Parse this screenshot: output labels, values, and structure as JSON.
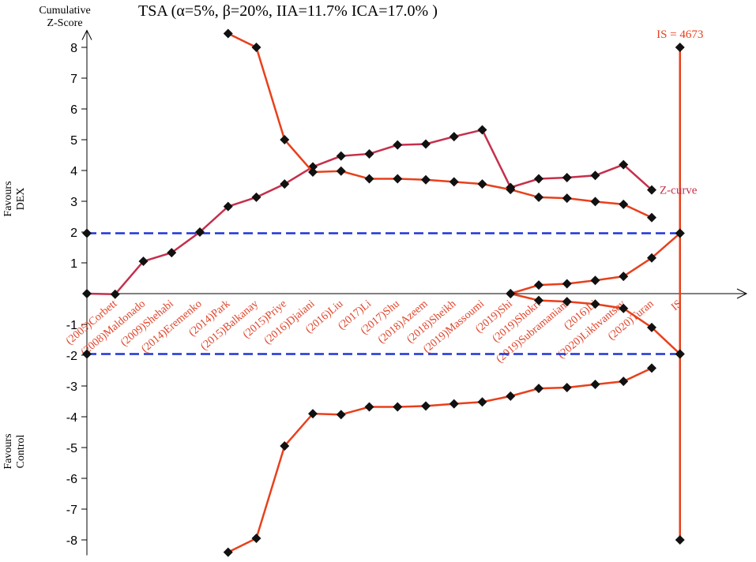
{
  "chart_data": {
    "type": "line",
    "title": "TSA  (α=5%,  β=20%, IIA=11.7%  ICA=17.0%  )",
    "y_label": [
      "Cumulative",
      "Z-Score"
    ],
    "side_labels": [
      [
        "Favours",
        "DEX"
      ],
      [
        "Favours",
        "Control"
      ]
    ],
    "categories": [
      null,
      "(2005)Corbett",
      "(2008)Maldonado",
      "(2009)Shehabi",
      "(2014)Eremenko",
      "(2014)Park",
      "(2015)Balkanay",
      "(2015)Priye",
      "(2016)Djaiani",
      "(2016)Liu",
      "(2017)Li",
      "(2017)Shu",
      "(2018)Azeem",
      "(2018)Sheikh",
      "(2019)Massoumi",
      "(2019)Shi",
      "(2019)Shokri",
      "(2019)Subramaniam",
      "(2016)Li",
      "(2020)Likhvantsev",
      "(2020)Turan",
      "IS"
    ],
    "category_color": "#e0442a",
    "series": [
      {
        "name": "Z-curve",
        "color": "#c4304c",
        "values": [
          0,
          -0.02,
          1.05,
          1.33,
          2.0,
          2.83,
          3.13,
          3.56,
          4.12,
          4.47,
          4.54,
          4.83,
          4.86,
          5.1,
          5.32,
          3.45,
          3.73,
          3.77,
          3.84,
          4.19,
          3.37,
          null
        ]
      },
      {
        "color": "#e8401c",
        "values": [
          null,
          null,
          null,
          null,
          null,
          8.45,
          8.0,
          5.0,
          3.95,
          3.98,
          3.73,
          3.73,
          3.7,
          3.63,
          3.56,
          3.38,
          3.13,
          3.1,
          2.99,
          2.9,
          2.47,
          null
        ]
      },
      {
        "color": "#e8401c",
        "values": [
          null,
          null,
          null,
          null,
          null,
          -8.4,
          -7.95,
          -4.95,
          -3.9,
          -3.93,
          -3.68,
          -3.68,
          -3.65,
          -3.58,
          -3.52,
          -3.33,
          -3.08,
          -3.05,
          -2.95,
          -2.85,
          -2.42,
          null
        ]
      },
      {
        "color": "#e8401c",
        "values": [
          null,
          null,
          null,
          null,
          null,
          null,
          null,
          null,
          null,
          null,
          null,
          null,
          null,
          null,
          null,
          0,
          0.28,
          0.32,
          0.43,
          0.56,
          1.16,
          1.96
        ]
      },
      {
        "color": "#e8401c",
        "values": [
          null,
          null,
          null,
          null,
          null,
          null,
          null,
          null,
          null,
          null,
          null,
          null,
          null,
          null,
          null,
          0,
          -0.22,
          -0.26,
          -0.34,
          -0.48,
          -1.1,
          -1.96
        ]
      }
    ],
    "reference_lines": {
      "color": "#1f35d8",
      "values": [
        1.96,
        -1.96
      ]
    },
    "is_line": {
      "label": "IS = 4673",
      "color": "#e8401c",
      "values": [
        8,
        1.96,
        -1.96,
        -8
      ]
    },
    "ylim": [
      -8.5,
      8.5
    ],
    "yticks": [
      -8,
      -7,
      -6,
      -5,
      -4,
      -3,
      -2,
      -1,
      1,
      2,
      3,
      4,
      5,
      6,
      7,
      8
    ]
  }
}
